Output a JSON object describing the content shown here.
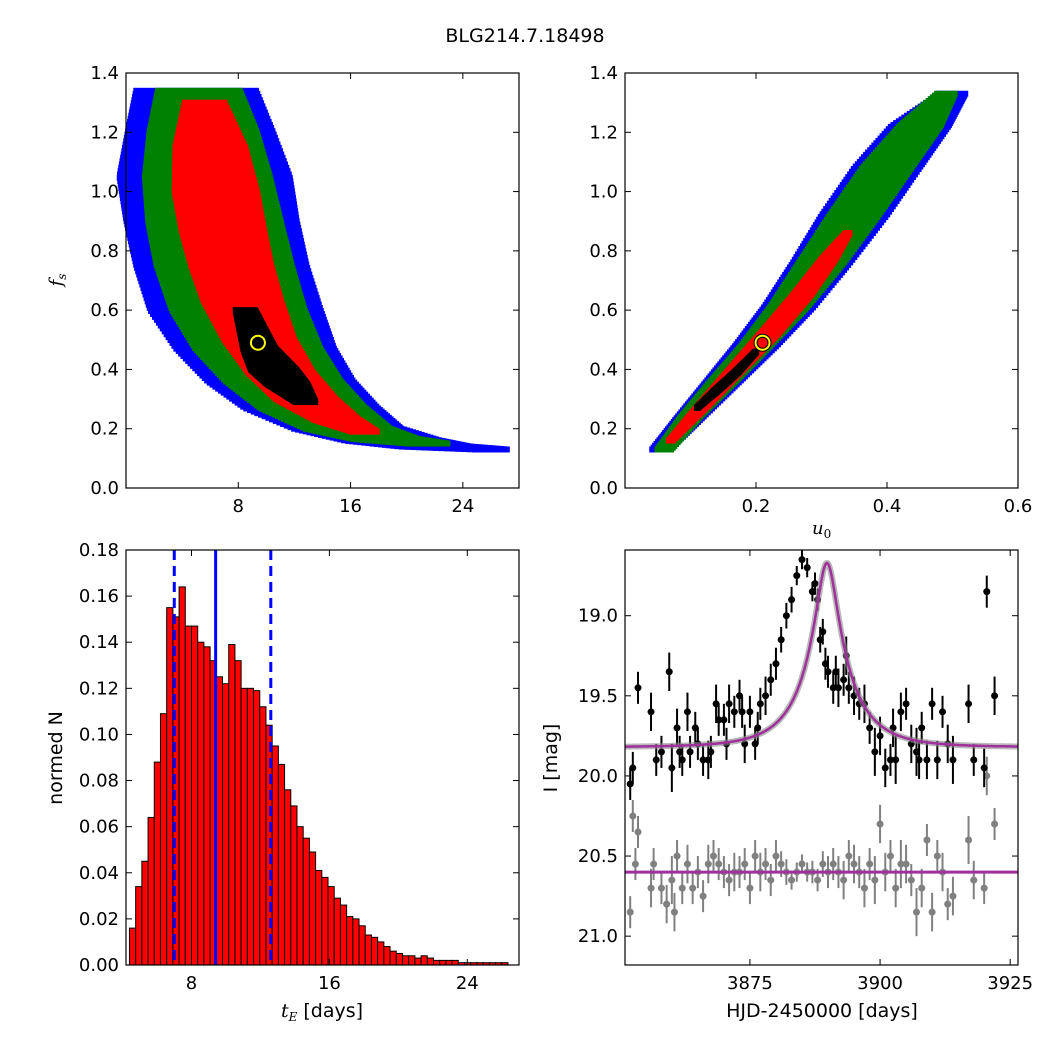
{
  "title": "BLG214.7.18498",
  "colors": {
    "sigma1": "#000000",
    "sigma2": "#ff0000",
    "sigma3": "#008000",
    "sigma4": "#0000ff",
    "hist_bar": "#ff0000",
    "hist_line": "#0000ff",
    "model": "#a0309c",
    "data_black": "#000000",
    "data_gray": "#808080",
    "best_marker": "#ffff00"
  },
  "chart_data": [
    {
      "id": "tE_fs",
      "type": "heatmap",
      "xlabel": "",
      "ylabel": "f_s",
      "xlim": [
        0,
        28
      ],
      "ylim": [
        0.0,
        1.4
      ],
      "xticks": [
        "8",
        "16",
        "24"
      ],
      "xtick_values": [
        8,
        16,
        24
      ],
      "yticks": [
        "0.0",
        "0.2",
        "0.4",
        "0.6",
        "0.8",
        "1.0",
        "1.2",
        "1.4"
      ],
      "ytick_values": [
        0.0,
        0.2,
        0.4,
        0.6,
        0.8,
        1.0,
        1.2,
        1.4
      ],
      "best_fit": {
        "x": 9.4,
        "y": 0.49
      },
      "contour_levels": [
        {
          "level": 4,
          "color": "#0000ff",
          "curve": [
            [
              5.0,
              1.34
            ],
            [
              5.3,
              1.2
            ],
            [
              5.6,
              1.05
            ],
            [
              6.1,
              0.9
            ],
            [
              6.8,
              0.75
            ],
            [
              7.8,
              0.6
            ],
            [
              9.2,
              0.47
            ],
            [
              11.0,
              0.36
            ],
            [
              13.2,
              0.27
            ],
            [
              15.8,
              0.2
            ],
            [
              19.0,
              0.16
            ],
            [
              22.0,
              0.14
            ],
            [
              26.0,
              0.13
            ]
          ],
          "width": [
            0.05,
            0.06,
            0.07,
            0.07,
            0.07,
            0.07,
            0.065,
            0.06,
            0.055,
            0.045,
            0.04,
            0.03,
            0.015
          ]
        },
        {
          "level": 3,
          "color": "#008000",
          "curve": [
            [
              5.2,
              1.34
            ],
            [
              5.5,
              1.2
            ],
            [
              5.8,
              1.05
            ],
            [
              6.3,
              0.9
            ],
            [
              7.0,
              0.75
            ],
            [
              8.0,
              0.6
            ],
            [
              9.4,
              0.47
            ],
            [
              11.2,
              0.36
            ],
            [
              13.3,
              0.27
            ],
            [
              15.8,
              0.2
            ],
            [
              18.5,
              0.165
            ],
            [
              21.5,
              0.15
            ]
          ],
          "width": [
            0.035,
            0.045,
            0.052,
            0.055,
            0.056,
            0.055,
            0.052,
            0.048,
            0.044,
            0.036,
            0.028,
            0.018
          ]
        },
        {
          "level": 2,
          "color": "#ff0000",
          "curve": [
            [
              5.6,
              1.3
            ],
            [
              6.0,
              1.15
            ],
            [
              6.4,
              1.0
            ],
            [
              6.9,
              0.87
            ],
            [
              7.5,
              0.75
            ],
            [
              8.3,
              0.63
            ],
            [
              9.5,
              0.5
            ],
            [
              11.0,
              0.39
            ],
            [
              12.8,
              0.3
            ],
            [
              15.0,
              0.23
            ],
            [
              17.0,
              0.19
            ]
          ],
          "width": [
            0.018,
            0.03,
            0.035,
            0.035,
            0.034,
            0.033,
            0.03,
            0.028,
            0.026,
            0.02,
            0.012
          ]
        },
        {
          "level": 1,
          "color": "#000000",
          "curve": [
            [
              8.5,
              0.6
            ],
            [
              9.5,
              0.47
            ],
            [
              10.5,
              0.4
            ],
            [
              11.5,
              0.35
            ],
            [
              12.8,
              0.29
            ]
          ],
          "width": [
            0.01,
            0.015,
            0.02,
            0.018,
            0.01
          ]
        }
      ]
    },
    {
      "id": "u0_fs",
      "type": "heatmap",
      "xlabel": "u_0",
      "ylabel": "",
      "xlim": [
        0.0,
        0.6
      ],
      "ylim": [
        0.0,
        1.4
      ],
      "xticks": [
        "0.2",
        "0.4",
        "0.6"
      ],
      "xtick_values": [
        0.2,
        0.4,
        0.6
      ],
      "yticks": [
        "0.0",
        "0.2",
        "0.4",
        "0.6",
        "0.8",
        "1.0",
        "1.2",
        "1.4"
      ],
      "ytick_values": [
        0.0,
        0.2,
        0.4,
        0.6,
        0.8,
        1.0,
        1.2,
        1.4
      ],
      "best_fit": {
        "x": 0.21,
        "y": 0.49
      },
      "contour_levels": [
        {
          "level": 4,
          "color": "#0000ff",
          "curve": [
            [
              0.055,
              0.13
            ],
            [
              0.1,
              0.24
            ],
            [
              0.15,
              0.36
            ],
            [
              0.2,
              0.48
            ],
            [
              0.25,
              0.61
            ],
            [
              0.3,
              0.76
            ],
            [
              0.35,
              0.92
            ],
            [
              0.4,
              1.08
            ],
            [
              0.45,
              1.22
            ],
            [
              0.5,
              1.33
            ]
          ],
          "width": [
            0.03,
            0.04,
            0.05,
            0.06,
            0.07,
            0.08,
            0.09,
            0.09,
            0.08,
            0.04
          ]
        },
        {
          "level": 3,
          "color": "#008000",
          "curve": [
            [
              0.06,
              0.13
            ],
            [
              0.1,
              0.24
            ],
            [
              0.15,
              0.36
            ],
            [
              0.2,
              0.48
            ],
            [
              0.25,
              0.61
            ],
            [
              0.3,
              0.76
            ],
            [
              0.35,
              0.92
            ],
            [
              0.4,
              1.08
            ],
            [
              0.45,
              1.22
            ],
            [
              0.49,
              1.33
            ]
          ],
          "width": [
            0.025,
            0.032,
            0.04,
            0.045,
            0.055,
            0.065,
            0.07,
            0.07,
            0.06,
            0.03
          ]
        },
        {
          "level": 2,
          "color": "#ff0000",
          "curve": [
            [
              0.07,
              0.16
            ],
            [
              0.12,
              0.28
            ],
            [
              0.17,
              0.4
            ],
            [
              0.22,
              0.52
            ],
            [
              0.27,
              0.65
            ],
            [
              0.31,
              0.77
            ],
            [
              0.34,
              0.86
            ]
          ],
          "width": [
            0.012,
            0.02,
            0.025,
            0.03,
            0.03,
            0.025,
            0.012
          ]
        },
        {
          "level": 1,
          "color": "#000000",
          "curve": [
            [
              0.11,
              0.27
            ],
            [
              0.14,
              0.33
            ],
            [
              0.17,
              0.39
            ],
            [
              0.2,
              0.46
            ]
          ],
          "width": [
            0.008,
            0.012,
            0.012,
            0.008
          ]
        }
      ]
    },
    {
      "id": "tE_hist",
      "type": "bar",
      "xlabel": "t_E [days]",
      "ylabel": "normed N",
      "xlim": [
        4.2,
        27.0
      ],
      "ylim": [
        0.0,
        0.18
      ],
      "xticks": [
        "8",
        "16",
        "24"
      ],
      "xtick_values": [
        8,
        16,
        24
      ],
      "yticks": [
        "0.00",
        "0.02",
        "0.04",
        "0.06",
        "0.08",
        "0.10",
        "0.12",
        "0.14",
        "0.16",
        "0.18"
      ],
      "ytick_values": [
        0.0,
        0.02,
        0.04,
        0.06,
        0.08,
        0.1,
        0.12,
        0.14,
        0.16,
        0.18
      ],
      "bin_start": 4.4,
      "bin_width": 0.36,
      "values": [
        0.016,
        0.034,
        0.045,
        0.064,
        0.088,
        0.109,
        0.155,
        0.151,
        0.164,
        0.147,
        0.147,
        0.14,
        0.138,
        0.132,
        0.125,
        0.122,
        0.139,
        0.132,
        0.12,
        0.12,
        0.119,
        0.112,
        0.104,
        0.095,
        0.087,
        0.076,
        0.069,
        0.06,
        0.055,
        0.049,
        0.041,
        0.038,
        0.034,
        0.029,
        0.026,
        0.021,
        0.02,
        0.017,
        0.013,
        0.012,
        0.01,
        0.008,
        0.006,
        0.005,
        0.004,
        0.004,
        0.003,
        0.004,
        0.003,
        0.002,
        0.002,
        0.002,
        0.002,
        0.001,
        0.001,
        0.001,
        0.001,
        0.001,
        0.001,
        0.001,
        0.001
      ],
      "median": 9.4,
      "lower": 7.0,
      "upper": 12.6
    },
    {
      "id": "lightcurve",
      "type": "scatter",
      "xlabel": "HJD-2450000 [days]",
      "ylabel": "I [mag]",
      "xlim": [
        3851.0,
        3926.5
      ],
      "ylim": [
        21.18,
        18.59
      ],
      "inverted_y": true,
      "xticks": [
        "3875",
        "3900",
        "3925"
      ],
      "xtick_values": [
        3875,
        3900,
        3925
      ],
      "yticks": [
        "19.0",
        "19.5",
        "20.0",
        "20.5",
        "21.0"
      ],
      "ytick_values": [
        19.0,
        19.5,
        20.0,
        20.5,
        21.0
      ],
      "model": {
        "t0": 3889.8,
        "tE": 9.4,
        "u0": 0.21,
        "base": 19.82,
        "fs": 0.49
      },
      "baseline_model": 20.6,
      "series_event": {
        "t": [
          3852.0,
          3852.5,
          3853.5,
          3856.0,
          3857.0,
          3858.0,
          3859.5,
          3860.0,
          3861.0,
          3861.5,
          3862.0,
          3863.0,
          3863.5,
          3864.5,
          3865.0,
          3866.0,
          3867.0,
          3867.5,
          3868.5,
          3869.0,
          3870.0,
          3870.5,
          3871.0,
          3872.0,
          3873.0,
          3873.5,
          3874.0,
          3875.0,
          3876.0,
          3876.5,
          3877.0,
          3878.0,
          3879.0,
          3880.0,
          3881.0,
          3882.0,
          3883.0,
          3884.0,
          3885.0,
          3886.0,
          3887.0,
          3887.5,
          3888.0,
          3888.5,
          3889.0,
          3889.5,
          3890.0,
          3891.0,
          3891.5,
          3892.0,
          3893.0,
          3893.5,
          3894.0,
          3895.0,
          3896.0,
          3897.0,
          3898.0,
          3899.0,
          3900.0,
          3901.0,
          3902.0,
          3902.5,
          3903.0,
          3904.0,
          3905.0,
          3906.0,
          3907.0,
          3907.5,
          3908.0,
          3909.0,
          3910.0,
          3911.0,
          3912.0,
          3913.0,
          3914.0,
          3917.0,
          3918.0,
          3920.0,
          3920.5,
          3922.0
        ],
        "mag": [
          20.05,
          19.95,
          19.45,
          19.6,
          19.9,
          19.85,
          19.35,
          19.95,
          19.7,
          19.85,
          19.9,
          19.6,
          19.85,
          19.7,
          19.8,
          19.9,
          19.9,
          19.85,
          19.55,
          19.65,
          19.65,
          19.8,
          19.55,
          19.6,
          19.5,
          19.6,
          19.8,
          19.6,
          19.8,
          19.7,
          19.55,
          19.5,
          19.4,
          19.3,
          19.15,
          19.0,
          18.9,
          18.75,
          18.65,
          18.7,
          18.85,
          18.8,
          18.9,
          19.15,
          19.1,
          19.3,
          19.35,
          19.45,
          19.35,
          19.45,
          19.4,
          19.25,
          19.45,
          19.5,
          19.55,
          19.55,
          19.7,
          19.85,
          19.75,
          19.95,
          19.9,
          19.7,
          19.9,
          19.6,
          19.55,
          19.8,
          19.85,
          19.9,
          19.7,
          19.9,
          19.55,
          19.9,
          19.6,
          19.8,
          19.9,
          19.55,
          19.9,
          19.95,
          18.85,
          19.5
        ],
        "err": [
          0.1,
          0.1,
          0.1,
          0.12,
          0.1,
          0.1,
          0.12,
          0.15,
          0.12,
          0.1,
          0.1,
          0.12,
          0.1,
          0.1,
          0.1,
          0.1,
          0.12,
          0.1,
          0.12,
          0.1,
          0.1,
          0.1,
          0.12,
          0.1,
          0.1,
          0.1,
          0.12,
          0.1,
          0.1,
          0.1,
          0.1,
          0.12,
          0.1,
          0.1,
          0.08,
          0.08,
          0.08,
          0.06,
          0.06,
          0.06,
          0.06,
          0.07,
          0.07,
          0.08,
          0.08,
          0.1,
          0.1,
          0.1,
          0.1,
          0.12,
          0.1,
          0.12,
          0.1,
          0.12,
          0.1,
          0.12,
          0.1,
          0.15,
          0.12,
          0.12,
          0.1,
          0.12,
          0.15,
          0.12,
          0.1,
          0.12,
          0.15,
          0.12,
          0.1,
          0.12,
          0.1,
          0.12,
          0.1,
          0.12,
          0.15,
          0.12,
          0.1,
          0.12,
          0.1,
          0.12
        ]
      },
      "series_residual": {
        "t": [
          3852.0,
          3852.5,
          3853.0,
          3853.5,
          3856.0,
          3856.5,
          3858.0,
          3859.0,
          3860.0,
          3860.5,
          3861.0,
          3862.0,
          3863.0,
          3864.0,
          3865.0,
          3866.0,
          3867.0,
          3868.0,
          3869.0,
          3870.0,
          3871.0,
          3872.0,
          3873.0,
          3874.0,
          3875.0,
          3876.0,
          3877.0,
          3878.0,
          3879.0,
          3880.0,
          3881.0,
          3882.0,
          3883.0,
          3884.0,
          3885.0,
          3886.0,
          3887.0,
          3888.0,
          3889.0,
          3890.0,
          3891.0,
          3892.0,
          3893.0,
          3894.0,
          3895.0,
          3896.0,
          3897.0,
          3898.0,
          3899.0,
          3900.0,
          3901.0,
          3902.0,
          3903.0,
          3904.0,
          3905.0,
          3906.0,
          3907.0,
          3908.0,
          3909.0,
          3910.0,
          3911.0,
          3912.0,
          3913.0,
          3914.0,
          3917.0,
          3918.0,
          3920.0,
          3920.5,
          3922.0
        ],
        "mag": [
          20.85,
          20.25,
          20.55,
          20.35,
          20.7,
          20.55,
          20.7,
          20.8,
          20.65,
          20.85,
          20.5,
          20.7,
          20.55,
          20.7,
          20.6,
          20.75,
          20.55,
          20.5,
          20.55,
          20.6,
          20.65,
          20.6,
          20.6,
          20.55,
          20.7,
          20.5,
          20.6,
          20.55,
          20.65,
          20.5,
          20.55,
          20.6,
          20.65,
          20.6,
          20.55,
          20.6,
          20.6,
          20.65,
          20.55,
          20.6,
          20.55,
          20.6,
          20.65,
          20.5,
          20.55,
          20.6,
          20.7,
          20.55,
          20.65,
          20.3,
          20.6,
          20.5,
          20.7,
          20.55,
          20.55,
          20.65,
          20.85,
          20.7,
          20.4,
          20.85,
          20.5,
          20.6,
          20.8,
          20.75,
          20.4,
          20.65,
          20.7,
          20.0,
          20.3
        ],
        "err": [
          0.1,
          0.1,
          0.1,
          0.1,
          0.12,
          0.1,
          0.1,
          0.12,
          0.15,
          0.12,
          0.1,
          0.1,
          0.12,
          0.1,
          0.1,
          0.1,
          0.12,
          0.1,
          0.1,
          0.1,
          0.1,
          0.12,
          0.1,
          0.1,
          0.1,
          0.1,
          0.12,
          0.1,
          0.1,
          0.1,
          0.08,
          0.08,
          0.06,
          0.06,
          0.06,
          0.06,
          0.07,
          0.07,
          0.08,
          0.1,
          0.1,
          0.1,
          0.12,
          0.1,
          0.12,
          0.1,
          0.12,
          0.1,
          0.15,
          0.12,
          0.12,
          0.1,
          0.12,
          0.15,
          0.12,
          0.1,
          0.15,
          0.12,
          0.1,
          0.12,
          0.1,
          0.12,
          0.1,
          0.12,
          0.15,
          0.12,
          0.1,
          0.12,
          0.1
        ]
      }
    }
  ]
}
